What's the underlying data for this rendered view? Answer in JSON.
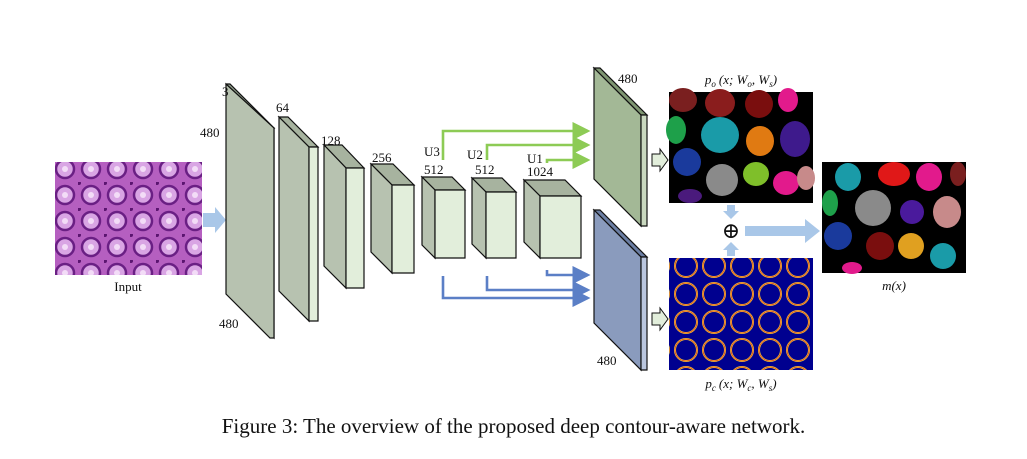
{
  "caption": "Figure 3: The overview of the proposed deep contour-aware network.",
  "labels": {
    "input": "Input",
    "l1_channels": "3",
    "l1_height_top": "480",
    "l1_height_bottom": "480",
    "l2_channels": "64",
    "l3_channels": "128",
    "l4_channels": "256",
    "l5_channels": "512",
    "l6_channels": "512",
    "l7_channels": "1024",
    "u3": "U3",
    "u2": "U2",
    "u1": "U1",
    "object_branch_size": "480",
    "contour_branch_size": "480",
    "fusion_symbol": "⊕"
  },
  "math": {
    "p_o": {
      "var": "p",
      "sub": "o",
      "args": "(x; W",
      "w1sub": "o",
      "mid": ", W",
      "w2sub": "s",
      "close": ")"
    },
    "p_c": {
      "var": "p",
      "sub": "c",
      "args": "(x; W",
      "w1sub": "c",
      "mid": ", W",
      "w2sub": "s",
      "close": ")"
    },
    "m": "m(x)"
  },
  "colors": {
    "feature_gray": "#b7c2b0",
    "feature_light": "#e2eedb",
    "object_panel": "#a3b896",
    "contour_panel": "#8a9bbd",
    "green_arrow": "#8dcb55",
    "blue_arrow": "#5b7fc6",
    "light_arrow": "#a9c7e8"
  }
}
